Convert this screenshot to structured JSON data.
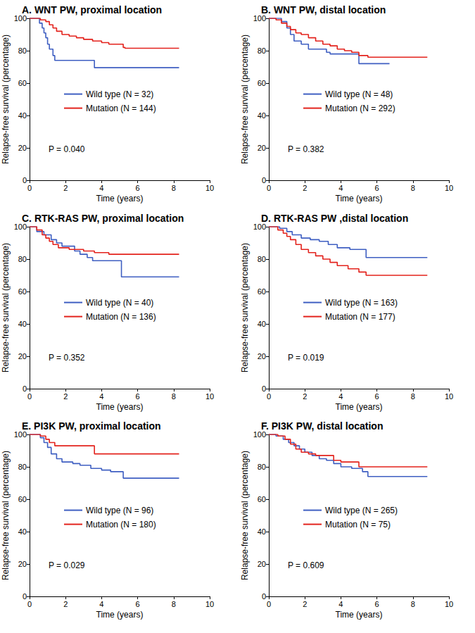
{
  "chart_data": [
    {
      "type": "line",
      "title": "A. WNT PW, proximal location",
      "xlabel": "Time (years)",
      "ylabel": "Relapse-free survival (percentage)",
      "annotation": "P = 0.040",
      "xlim": [
        0,
        10
      ],
      "xticks": [
        0,
        2,
        4,
        6,
        8,
        10
      ],
      "ylim": [
        0,
        100
      ],
      "yticks": [
        0,
        20,
        40,
        60,
        80,
        100
      ],
      "grid": false,
      "line_style": "step",
      "series": [
        {
          "name": "Wild type (N = 32)",
          "color": "#3f5fc2",
          "x": [
            0,
            0.55,
            0.7,
            0.8,
            0.9,
            1.0,
            1.1,
            1.3,
            1.4,
            3.6,
            8.3
          ],
          "values": [
            100,
            97,
            94,
            91,
            88,
            84,
            81,
            77,
            74,
            69.5,
            69.5
          ]
        },
        {
          "name": "Mutation (N = 144)",
          "color": "#e3231d",
          "x": [
            0,
            0.6,
            0.9,
            1.1,
            1.3,
            1.5,
            1.8,
            2.2,
            2.6,
            3.0,
            3.5,
            4.0,
            4.4,
            5.2,
            5.3,
            8.3
          ],
          "values": [
            100,
            99,
            98,
            96,
            94,
            92,
            90,
            89,
            88,
            87,
            86,
            85,
            84,
            82,
            81.5,
            81.5
          ]
        }
      ]
    },
    {
      "type": "line",
      "title": "B. WNT PW, distal location",
      "xlabel": "Time (years)",
      "ylabel": "Relapse-free survival (percentage)",
      "annotation": "P = 0.382",
      "xlim": [
        0,
        10
      ],
      "xticks": [
        0,
        2,
        4,
        6,
        8,
        10
      ],
      "ylim": [
        0,
        100
      ],
      "yticks": [
        0,
        20,
        40,
        60,
        80,
        100
      ],
      "grid": false,
      "line_style": "step",
      "series": [
        {
          "name": "Wild type (N = 48)",
          "color": "#3f5fc2",
          "x": [
            0,
            0.7,
            1.0,
            1.2,
            1.4,
            1.8,
            2.2,
            3.2,
            3.4,
            5.0,
            6.7
          ],
          "values": [
            100,
            98,
            94,
            90,
            86,
            84,
            81,
            79,
            78,
            72,
            72
          ]
        },
        {
          "name": "Mutation (N = 292)",
          "color": "#e3231d",
          "x": [
            0,
            0.4,
            0.7,
            1.0,
            1.2,
            1.5,
            1.8,
            2.2,
            2.6,
            3.0,
            3.4,
            3.8,
            4.2,
            4.6,
            5.0,
            5.5,
            8.8
          ],
          "values": [
            100,
            99,
            97,
            95,
            93,
            91,
            90,
            88,
            86,
            84,
            83,
            81,
            80,
            79,
            77,
            76,
            76
          ]
        }
      ]
    },
    {
      "type": "line",
      "title": "C. RTK-RAS PW, proximal location",
      "xlabel": "Time (years)",
      "ylabel": "Relapse-free survival (percentage)",
      "annotation": "P = 0.352",
      "xlim": [
        0,
        10
      ],
      "xticks": [
        0,
        2,
        4,
        6,
        8,
        10
      ],
      "ylim": [
        0,
        100
      ],
      "yticks": [
        0,
        20,
        40,
        60,
        80,
        100
      ],
      "grid": false,
      "line_style": "step",
      "series": [
        {
          "name": "Wild type (N = 40)",
          "color": "#3f5fc2",
          "x": [
            0,
            0.4,
            0.8,
            1.2,
            1.5,
            1.8,
            2.5,
            2.8,
            3.2,
            3.5,
            5.1,
            8.3
          ],
          "values": [
            100,
            97,
            95,
            92,
            90,
            88,
            85,
            83,
            81,
            79,
            69,
            69
          ]
        },
        {
          "name": "Mutation (N = 136)",
          "color": "#e3231d",
          "x": [
            0,
            0.4,
            0.7,
            0.9,
            1.1,
            1.3,
            1.6,
            2.2,
            3.0,
            3.6,
            4.4,
            8.3
          ],
          "values": [
            100,
            98,
            95,
            93,
            91,
            89,
            87,
            86,
            85,
            84,
            83,
            83
          ]
        }
      ]
    },
    {
      "type": "line",
      "title": "D. RTK-RAS PW ,distal location",
      "xlabel": "Time (years)",
      "ylabel": "Relapse-free survival (percentage)",
      "annotation": "P = 0.019",
      "xlim": [
        0,
        10
      ],
      "xticks": [
        0,
        2,
        4,
        6,
        8,
        10
      ],
      "ylim": [
        0,
        100
      ],
      "yticks": [
        0,
        20,
        40,
        60,
        80,
        100
      ],
      "grid": false,
      "line_style": "step",
      "series": [
        {
          "name": "Wild type (N = 163)",
          "color": "#3f5fc2",
          "x": [
            0,
            0.6,
            1.0,
            1.3,
            1.8,
            2.3,
            2.8,
            3.3,
            3.8,
            4.5,
            5.4,
            8.8
          ],
          "values": [
            100,
            99,
            97,
            95,
            93,
            92,
            91,
            89,
            87,
            86,
            81,
            81
          ]
        },
        {
          "name": "Mutation (N = 177)",
          "color": "#e3231d",
          "x": [
            0,
            0.5,
            0.8,
            1.0,
            1.2,
            1.5,
            1.8,
            2.2,
            2.6,
            3.0,
            3.4,
            3.8,
            4.4,
            5.0,
            5.4,
            8.8
          ],
          "values": [
            100,
            98,
            96,
            94,
            92,
            89,
            86,
            84,
            82,
            80,
            78,
            76,
            74,
            72,
            70,
            70
          ]
        }
      ]
    },
    {
      "type": "line",
      "title": "E. PI3K PW, proximal location",
      "xlabel": "Time (years)",
      "ylabel": "Relapse-free survival (percentage)",
      "annotation": "P = 0.029",
      "xlim": [
        0,
        10
      ],
      "xticks": [
        0,
        2,
        4,
        6,
        8,
        10
      ],
      "ylim": [
        0,
        100
      ],
      "yticks": [
        0,
        20,
        40,
        60,
        80,
        100
      ],
      "grid": false,
      "line_style": "step",
      "series": [
        {
          "name": "Wild type (N = 96)",
          "color": "#3f5fc2",
          "x": [
            0,
            0.6,
            0.8,
            1.0,
            1.2,
            1.5,
            1.8,
            2.4,
            2.8,
            3.4,
            4.0,
            4.5,
            5.2,
            8.3
          ],
          "values": [
            100,
            98,
            95,
            92,
            88,
            85,
            83,
            82,
            81,
            79,
            78,
            77,
            73,
            73
          ]
        },
        {
          "name": "Mutation (N = 180)",
          "color": "#e3231d",
          "x": [
            0,
            0.6,
            0.9,
            1.1,
            1.4,
            3.6,
            8.3
          ],
          "values": [
            100,
            99,
            97,
            95,
            93,
            88,
            88
          ]
        }
      ]
    },
    {
      "type": "line",
      "title": "F. PI3K PW, distal location",
      "xlabel": "Time (years)",
      "ylabel": "Relapse-free survival (percentage)",
      "annotation": "P = 0.609",
      "xlim": [
        0,
        10
      ],
      "xticks": [
        0,
        2,
        4,
        6,
        8,
        10
      ],
      "ylim": [
        0,
        100
      ],
      "yticks": [
        0,
        20,
        40,
        60,
        80,
        100
      ],
      "grid": false,
      "line_style": "step",
      "series": [
        {
          "name": "Wild type (N = 265)",
          "color": "#3f5fc2",
          "x": [
            0,
            0.4,
            0.8,
            1.1,
            1.4,
            1.7,
            2.0,
            2.4,
            2.8,
            3.2,
            3.6,
            4.0,
            4.6,
            5.2,
            5.5,
            8.8
          ],
          "values": [
            100,
            99,
            97,
            95,
            93,
            91,
            89,
            87,
            85,
            84,
            82,
            80,
            79,
            77,
            74,
            74
          ]
        },
        {
          "name": "Mutation (N = 75)",
          "color": "#e3231d",
          "x": [
            0,
            0.5,
            0.9,
            1.2,
            1.5,
            1.8,
            2.2,
            2.6,
            3.6,
            4.0,
            5.0,
            8.8
          ],
          "values": [
            100,
            99,
            97,
            94,
            91,
            89,
            88,
            87,
            84,
            83,
            80,
            80
          ]
        }
      ]
    }
  ]
}
